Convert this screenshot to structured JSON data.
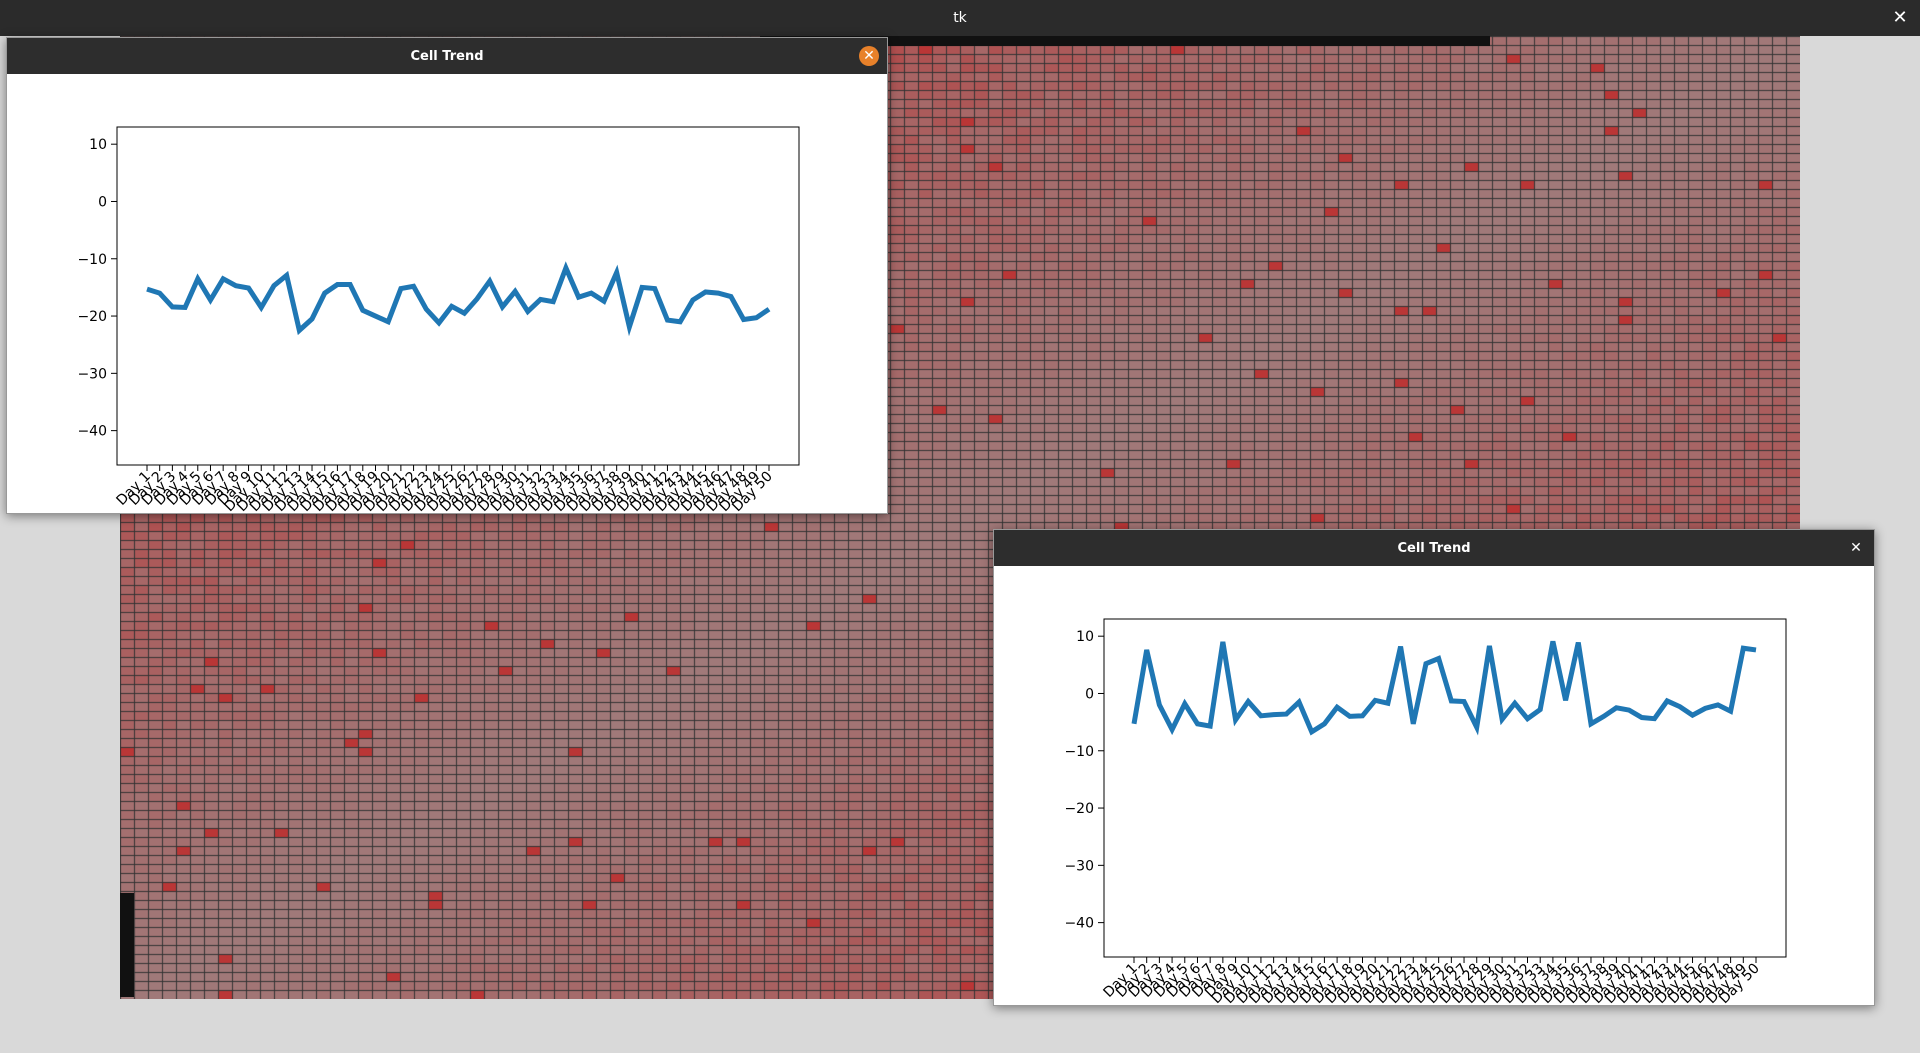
{
  "window": {
    "title": "tk",
    "close_icon": "✕"
  },
  "colors": {
    "line": "#1f77b4",
    "titlebar": "#2b2b2b",
    "close_active": "#e8812a"
  },
  "popups": [
    {
      "title": "Cell Trend",
      "close_glyph": "✕",
      "chart_data": {
        "type": "line",
        "x": [
          "Day 1",
          "Day 2",
          "Day 3",
          "Day 4",
          "Day 5",
          "Day 6",
          "Day 7",
          "Day 8",
          "Day 9",
          "Day 10",
          "Day 11",
          "Day 12",
          "Day 13",
          "Day 14",
          "Day 15",
          "Day 16",
          "Day 17",
          "Day 18",
          "Day 19",
          "Day 20",
          "Day 21",
          "Day 22",
          "Day 23",
          "Day 24",
          "Day 25",
          "Day 26",
          "Day 27",
          "Day 28",
          "Day 29",
          "Day 30",
          "Day 31",
          "Day 32",
          "Day 33",
          "Day 34",
          "Day 35",
          "Day 36",
          "Day 37",
          "Day 38",
          "Day 39",
          "Day 40",
          "Day 41",
          "Day 42",
          "Day 43",
          "Day 44",
          "Day 45",
          "Day 46",
          "Day 47",
          "Day 48",
          "Day 49",
          "Day 50"
        ],
        "values": [
          -15.3,
          -16.0,
          -18.4,
          -18.5,
          -13.5,
          -17.2,
          -13.5,
          -14.7,
          -15.1,
          -18.5,
          -14.7,
          -12.9,
          -22.5,
          -20.5,
          -16.0,
          -14.5,
          -14.5,
          -19.0,
          -20.0,
          -21.0,
          -15.2,
          -14.8,
          -18.8,
          -21.2,
          -18.3,
          -19.5,
          -17.0,
          -13.9,
          -18.4,
          -15.7,
          -19.2,
          -17.1,
          -17.5,
          -11.6,
          -16.7,
          -16.0,
          -17.4,
          -12.4,
          -21.9,
          -15.0,
          -15.2,
          -20.7,
          -21.0,
          -17.2,
          -15.8,
          -16.0,
          -16.6,
          -20.6,
          -20.3,
          -18.8
        ],
        "ylim": [
          -46,
          13
        ],
        "yticks": [
          10,
          0,
          -10,
          -20,
          -30,
          -40
        ],
        "ytick_labels": [
          "10",
          "0",
          "−10",
          "−20",
          "−30",
          "−40"
        ]
      }
    },
    {
      "title": "Cell Trend",
      "close_glyph": "✕",
      "chart_data": {
        "type": "line",
        "x": [
          "Day 1",
          "Day 2",
          "Day 3",
          "Day 4",
          "Day 5",
          "Day 6",
          "Day 7",
          "Day 8",
          "Day 9",
          "Day 10",
          "Day 11",
          "Day 12",
          "Day 13",
          "Day 14",
          "Day 15",
          "Day 16",
          "Day 17",
          "Day 18",
          "Day 19",
          "Day 20",
          "Day 21",
          "Day 22",
          "Day 23",
          "Day 24",
          "Day 25",
          "Day 26",
          "Day 27",
          "Day 28",
          "Day 29",
          "Day 30",
          "Day 31",
          "Day 32",
          "Day 33",
          "Day 34",
          "Day 35",
          "Day 36",
          "Day 37",
          "Day 38",
          "Day 39",
          "Day 40",
          "Day 41",
          "Day 42",
          "Day 43",
          "Day 44",
          "Day 45",
          "Day 46",
          "Day 47",
          "Day 48",
          "Day 49",
          "Day 50"
        ],
        "values": [
          -5.3,
          7.6,
          -2.0,
          -6.3,
          -1.8,
          -5.3,
          -5.7,
          9.0,
          -4.6,
          -1.4,
          -3.9,
          -3.7,
          -3.6,
          -1.5,
          -6.7,
          -5.3,
          -2.4,
          -4.0,
          -3.9,
          -1.2,
          -1.7,
          8.2,
          -5.3,
          5.2,
          6.1,
          -1.3,
          -1.4,
          -5.9,
          8.3,
          -4.5,
          -1.7,
          -4.4,
          -2.8,
          9.1,
          -1.2,
          8.9,
          -5.3,
          -4.0,
          -2.5,
          -2.9,
          -4.2,
          -4.4,
          -1.3,
          -2.3,
          -3.8,
          -2.6,
          -2.0,
          -3.1,
          7.9,
          7.6
        ],
        "ylim": [
          -46,
          13
        ],
        "yticks": [
          10,
          0,
          -10,
          -20,
          -30,
          -40
        ],
        "ytick_labels": [
          "10",
          "0",
          "−10",
          "−20",
          "−30",
          "−40"
        ]
      }
    }
  ]
}
